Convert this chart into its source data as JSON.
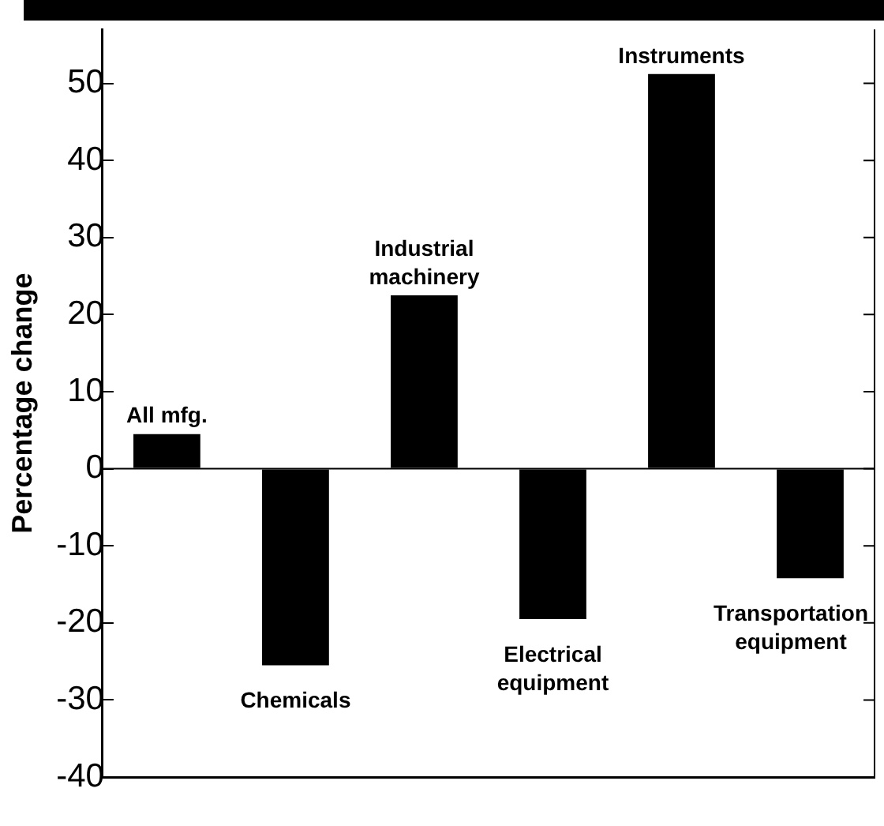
{
  "chart_data": {
    "type": "bar",
    "ylabel": "Percentage change",
    "categories": [
      "All mfg.",
      "Chemicals",
      "Industrial machinery",
      "Electrical equipment",
      "Instruments",
      "Transportation equipment"
    ],
    "values": [
      4.5,
      -25.5,
      22.5,
      -19.5,
      51.2,
      -14.2
    ],
    "color": "#000000",
    "ylim": [
      -40,
      57
    ],
    "yticks": [
      -40,
      -30,
      -20,
      -10,
      0,
      10,
      20,
      30,
      40,
      50
    ],
    "grid": false,
    "legend": false,
    "ref_lines": [
      {
        "axis": "y",
        "value": 0
      }
    ]
  }
}
